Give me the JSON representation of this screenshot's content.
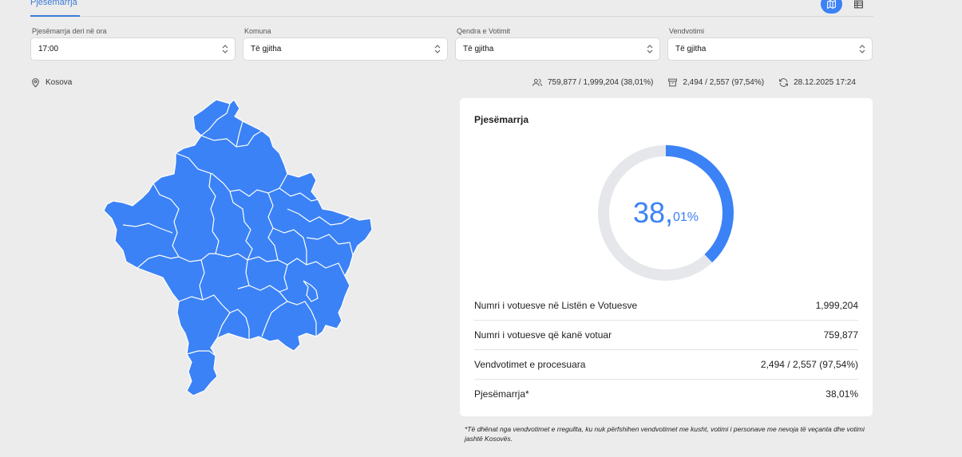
{
  "tabs": {
    "active_label": "Pjesëmarrja"
  },
  "view_toggle": {
    "map_icon": "map-icon",
    "table_icon": "table-icon",
    "accent": "#3b82f6"
  },
  "filters": [
    {
      "label": "Pjesëmarrja deri në ora",
      "value": "17:00"
    },
    {
      "label": "Komuna",
      "value": "Të gjitha"
    },
    {
      "label": "Qendra e Votimit",
      "value": "Të gjitha"
    },
    {
      "label": "Vendvotimi",
      "value": "Të gjitha"
    }
  ],
  "location": {
    "label": "Kosova",
    "icon": "location-pin-icon"
  },
  "stats": {
    "voters": "759,877 / 1,999,204 (38,01%)",
    "stations": "2,494 / 2,557 (97,54%)",
    "updated": "28.12.2025 17:24"
  },
  "card": {
    "title": "Pjesëmarrja",
    "turnout_percent": 38.01,
    "turnout_whole": "38,",
    "turnout_fraction": "01%",
    "rows": [
      {
        "label": "Numri i votuesve në Listën e Votuesve",
        "value": "1,999,204"
      },
      {
        "label": "Numri i votuesve që kanë votuar",
        "value": "759,877"
      },
      {
        "label": "Vendvotimet e procesuara",
        "value": "2,494 / 2,557 (97,54%)"
      },
      {
        "label": "Pjesëmarrja*",
        "value": "38,01%"
      }
    ]
  },
  "footnote": "*Të dhënat nga vendvotimet e rregullta, ku nuk përfshihen vendvotimet me kusht, votimi i personave me nevoja të veçanta dhe votimi jashtë Kosovës.",
  "map": {
    "fill_color": "#3b82f6"
  }
}
